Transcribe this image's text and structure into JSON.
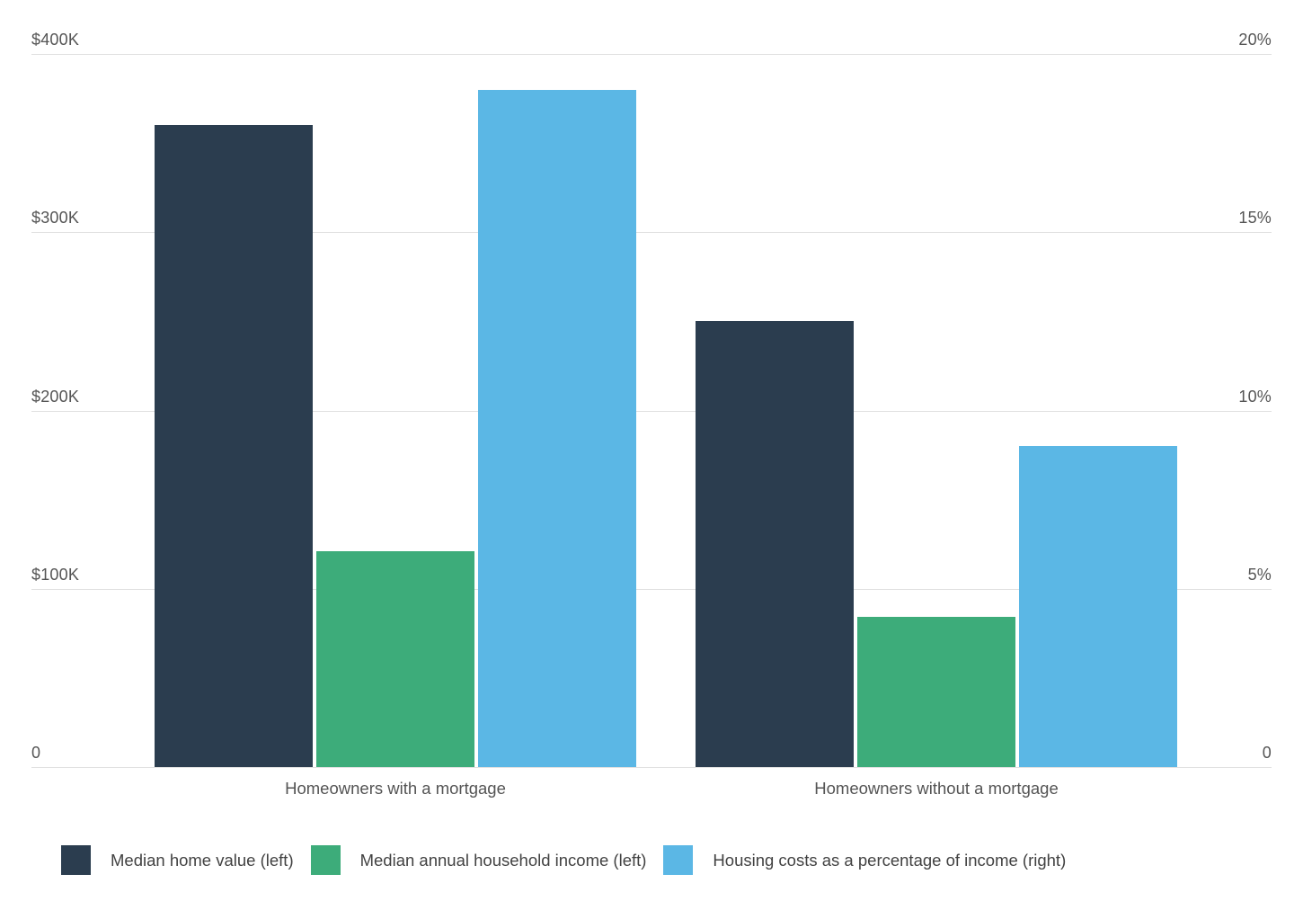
{
  "chart_data": {
    "type": "bar",
    "categories": [
      "Homeowners with a mortgage",
      "Homeowners without a mortgage"
    ],
    "series": [
      {
        "name": "Median home value (left)",
        "axis": "left",
        "color": "#2b3d4f",
        "values": [
          360000,
          250000
        ]
      },
      {
        "name": "Median annual household income (left)",
        "axis": "left",
        "color": "#3dac7a",
        "values": [
          121000,
          84000
        ]
      },
      {
        "name": "Housing costs as a percentage of income (right)",
        "axis": "right",
        "color": "#5bb7e5",
        "values": [
          19,
          9
        ]
      }
    ],
    "left_axis": {
      "ticks": [
        "$400K",
        "$300K",
        "$200K",
        "$100K",
        "0"
      ],
      "range": [
        0,
        400000
      ]
    },
    "right_axis": {
      "ticks": [
        "20%",
        "15%",
        "10%",
        "5%",
        "0"
      ],
      "range": [
        0,
        20
      ]
    },
    "grid": true,
    "legend_position": "bottom",
    "colors": {
      "background": "#ffffff",
      "gridline": "#e0e0e0",
      "axis_text": "#555555",
      "legend_text": "#424242"
    }
  }
}
